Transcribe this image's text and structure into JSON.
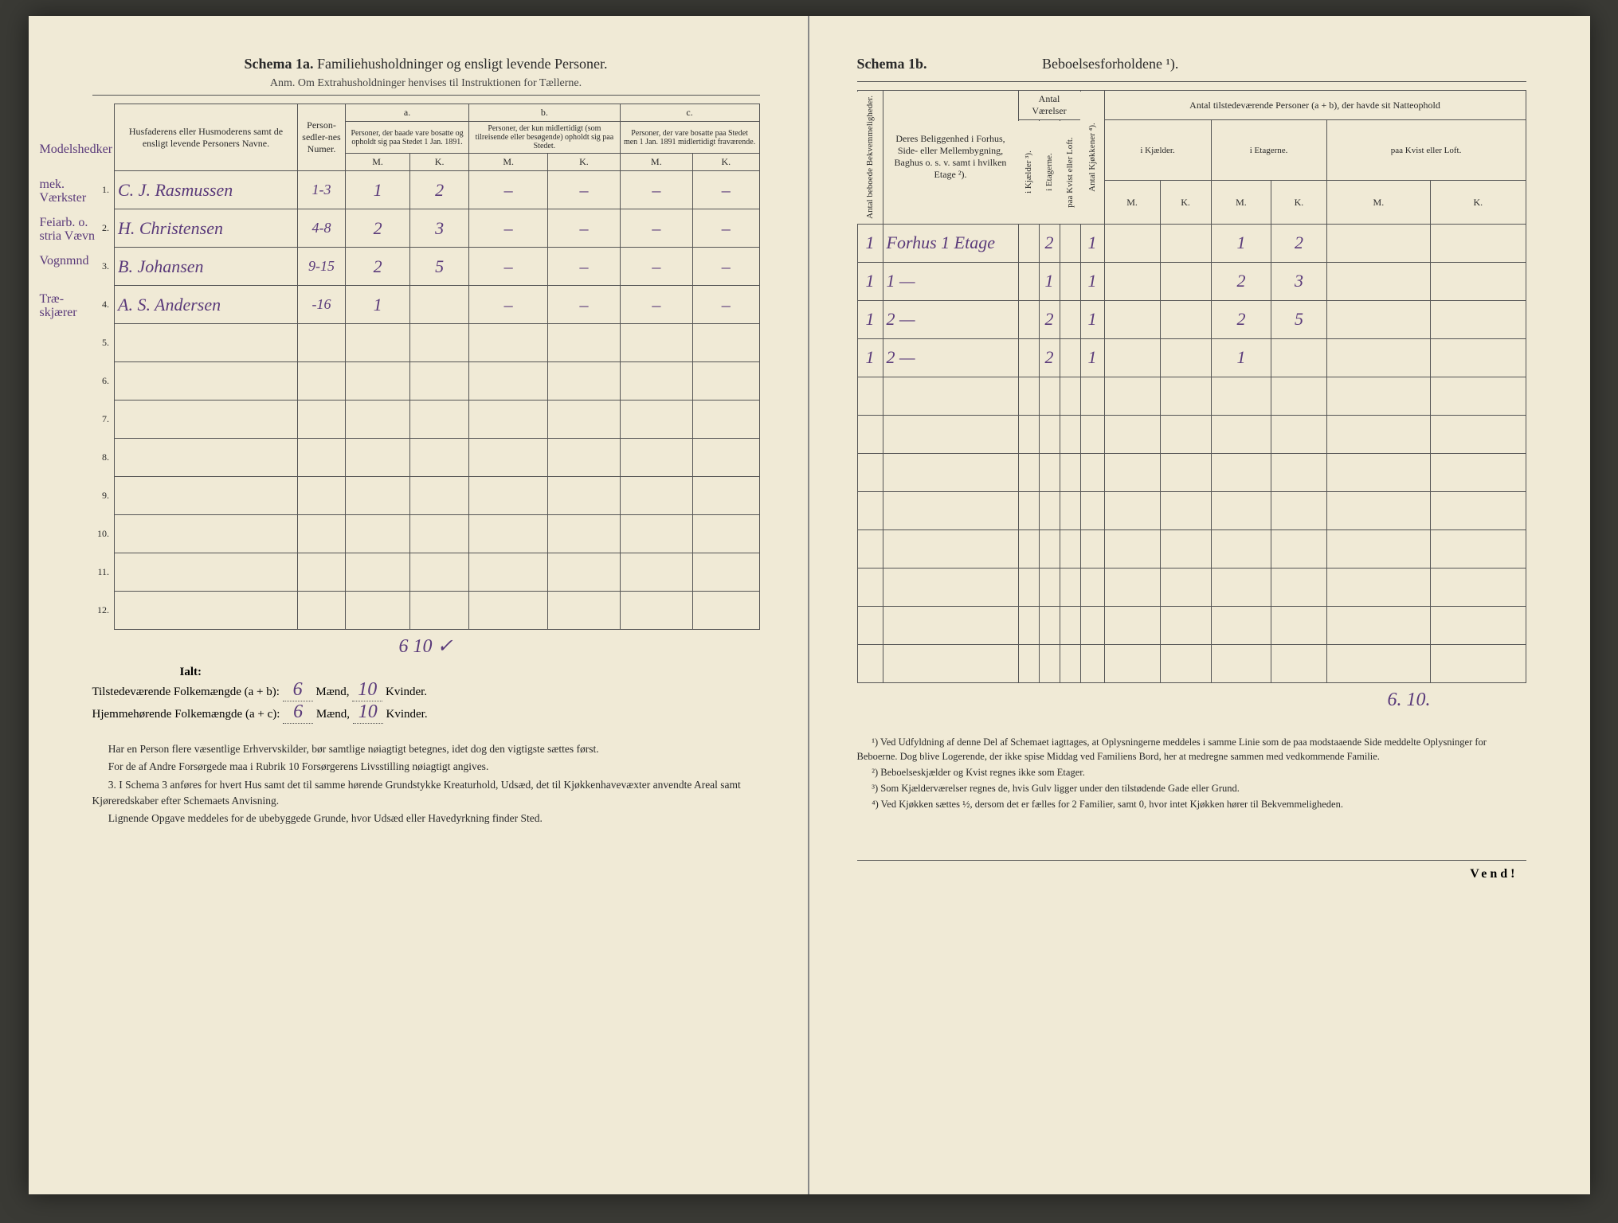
{
  "left": {
    "title_prefix": "Schema 1a.",
    "title_main": "Familiehusholdninger og ensligt levende Personer.",
    "subtitle": "Anm. Om Extrahusholdninger henvises til Instruktionen for Tællerne.",
    "header": {
      "names": "Husfaderens eller Husmoderens samt de ensligt levende Personers Navne.",
      "numer": "Person-sedler-nes Numer.",
      "col_a": "a.",
      "col_b": "b.",
      "col_c": "c.",
      "col_a_text": "Personer, der baade vare bosatte og opholdt sig paa Stedet 1 Jan. 1891.",
      "col_b_text": "Personer, der kun midlertidigt (som tilreisende eller besøgende) opholdt sig paa Stedet.",
      "col_c_text": "Personer, der vare bosatte paa Stedet men 1 Jan. 1891 midlertidigt fraværende.",
      "M": "M.",
      "K": "K."
    },
    "margin_head": "Modelshedker",
    "rows": [
      {
        "n": "1.",
        "margin": "mek. Værkster",
        "name": "C. J. Rasmussen",
        "num": "1-3",
        "aM": "1",
        "aK": "2",
        "bM": "–",
        "bK": "–",
        "cM": "–",
        "cK": "–"
      },
      {
        "n": "2.",
        "margin": "Feiarb. o. stria Vævn",
        "name": "H. Christensen",
        "num": "4-8",
        "aM": "2",
        "aK": "3",
        "bM": "–",
        "bK": "–",
        "cM": "–",
        "cK": "–"
      },
      {
        "n": "3.",
        "margin": "Vognmnd",
        "name": "B. Johansen",
        "num": "9-15",
        "aM": "2",
        "aK": "5",
        "bM": "–",
        "bK": "–",
        "cM": "–",
        "cK": "–"
      },
      {
        "n": "4.",
        "margin": "Træ-skjærer",
        "name": "A. S. Andersen",
        "num": "-16",
        "aM": "1",
        "aK": "",
        "bM": "–",
        "bK": "–",
        "cM": "–",
        "cK": "–"
      },
      {
        "n": "5."
      },
      {
        "n": "6."
      },
      {
        "n": "7."
      },
      {
        "n": "8."
      },
      {
        "n": "9."
      },
      {
        "n": "10."
      },
      {
        "n": "11."
      },
      {
        "n": "12."
      }
    ],
    "ialt_preline": "6   10 ✓",
    "ialt_label": "Ialt:",
    "totals": {
      "line1_label": "Tilstedeværende Folkemængde (a + b):",
      "line2_label": "Hjemmehørende Folkemængde (a + c):",
      "m1": "6",
      "k1": "10",
      "m2": "6",
      "k2": "10",
      "maend": "Mænd,",
      "kvinder": "Kvinder."
    },
    "footnotes": [
      "Har en Person flere væsentlige Erhvervskilder, bør samtlige nøiagtigt betegnes, idet dog den vigtigste sættes først.",
      "For de af Andre Forsørgede maa i Rubrik 10 Forsørgerens Livsstilling nøiagtigt angives.",
      "3. I Schema 3 anføres for hvert Hus samt det til samme hørende Grundstykke Kreaturhold, Udsæd, det til Kjøkkenhavevæxter anvendte Areal samt Kjøreredskaber efter Schemaets Anvisning.",
      "Lignende Opgave meddeles for de ubebyggede Grunde, hvor Udsæd eller Havedyrkning finder Sted."
    ]
  },
  "right": {
    "title_prefix": "Schema 1b.",
    "title_main": "Beboelsesforholdene ¹).",
    "header": {
      "col1": "Antal beboede Bekvemmeligheder.",
      "col2": "Deres Beliggenhed i Forhus, Side- eller Mellembygning, Baghus o. s. v. samt i hvilken Etage ²).",
      "group_vaer": "Antal Værelser",
      "v1": "i Kjælder ³).",
      "v2": "i Etagerne.",
      "v3": "paa Kvist eller Loft.",
      "kjok": "Antal Kjøkkener ⁴).",
      "group_pers": "Antal tilstedeværende Personer (a + b), der havde sit Natteophold",
      "p1": "i Kjælder.",
      "p2": "i Etagerne.",
      "p3": "paa Kvist eller Loft.",
      "M": "M.",
      "K": "K."
    },
    "rows": [
      {
        "bk": "1",
        "loc": "Forhus 1 Etage",
        "vK": "",
        "vE": "2",
        "vL": "",
        "kj": "1",
        "kM": "",
        "kK": "",
        "eM": "1",
        "eK": "2",
        "lM": "",
        "lK": ""
      },
      {
        "bk": "1",
        "loc": "1   —",
        "vK": "",
        "vE": "1",
        "vL": "",
        "kj": "1",
        "kM": "",
        "kK": "",
        "eM": "2",
        "eK": "3",
        "lM": "",
        "lK": ""
      },
      {
        "bk": "1",
        "loc": "2   —",
        "vK": "",
        "vE": "2",
        "vL": "",
        "kj": "1",
        "kM": "",
        "kK": "",
        "eM": "2",
        "eK": "5",
        "lM": "",
        "lK": ""
      },
      {
        "bk": "1",
        "loc": "2   —",
        "vK": "",
        "vE": "2",
        "vL": "",
        "kj": "1",
        "kM": "",
        "kK": "",
        "eM": "1",
        "eK": "",
        "lM": "",
        "lK": ""
      },
      {},
      {},
      {},
      {},
      {},
      {},
      {},
      {}
    ],
    "totals_hand": "6.  10.",
    "footnotes": [
      "¹) Ved Udfyldning af denne Del af Schemaet iagttages, at Oplysningerne meddeles i samme Linie som de paa modstaaende Side meddelte Oplysninger for Beboerne. Dog blive Logerende, der ikke spise Middag ved Familiens Bord, her at medregne sammen med vedkommende Familie.",
      "²) Beboelseskjælder og Kvist regnes ikke som Etager.",
      "³) Som Kjælderværelser regnes de, hvis Gulv ligger under den tilstødende Gade eller Grund.",
      "⁴) Ved Kjøkken sættes ½, dersom det er fælles for 2 Familier, samt 0, hvor intet Kjøkken hører til Bekvemmeligheden."
    ],
    "vend": "Vend!"
  }
}
